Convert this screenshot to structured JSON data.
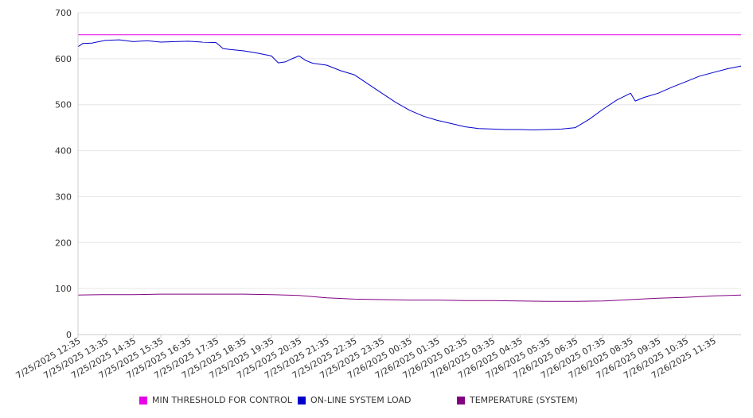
{
  "chart_data": {
    "type": "line",
    "title": "",
    "xlabel": "",
    "ylabel": "",
    "ylim": [
      0,
      700
    ],
    "y_ticks": [
      0,
      100,
      200,
      300,
      400,
      500,
      600,
      700
    ],
    "grid": "horizontal",
    "legend_position": "bottom",
    "x_start": "7/25/2025 12:35",
    "x_end": "7/26/2025 12:35",
    "x_tick_labels": [
      "7/25/2025 12:35",
      "7/25/2025 13:35",
      "7/25/2025 14:35",
      "7/25/2025 15:35",
      "7/25/2025 16:35",
      "7/25/2025 17:35",
      "7/25/2025 18:35",
      "7/25/2025 19:35",
      "7/25/2025 20:35",
      "7/25/2025 21:35",
      "7/25/2025 22:35",
      "7/25/2025 23:35",
      "7/26/2025 00:35",
      "7/26/2025 01:35",
      "7/26/2025 02:35",
      "7/26/2025 03:35",
      "7/26/2025 04:35",
      "7/26/2025 05:35",
      "7/26/2025 06:35",
      "7/26/2025 07:35",
      "7/26/2025 08:35",
      "7/26/2025 09:35",
      "7/26/2025 10:35",
      "7/26/2025 11:35"
    ],
    "series": [
      {
        "name": "MIN THRESHOLD FOR CONTROL",
        "color": "#e600e6",
        "x": [
          "7/25/2025 12:35",
          "7/26/2025 12:35"
        ],
        "values": [
          652,
          652
        ]
      },
      {
        "name": "ON-LINE SYSTEM LOAD",
        "color": "#0000cc",
        "x": [
          "7/25/2025 12:35",
          "7/25/2025 12:45",
          "7/25/2025 13:05",
          "7/25/2025 13:35",
          "7/25/2025 14:05",
          "7/25/2025 14:35",
          "7/25/2025 15:05",
          "7/25/2025 15:35",
          "7/25/2025 16:05",
          "7/25/2025 16:35",
          "7/25/2025 17:05",
          "7/25/2025 17:35",
          "7/25/2025 17:50",
          "7/25/2025 18:05",
          "7/25/2025 18:35",
          "7/25/2025 19:05",
          "7/25/2025 19:35",
          "7/25/2025 19:50",
          "7/25/2025 20:05",
          "7/25/2025 20:20",
          "7/25/2025 20:35",
          "7/25/2025 20:50",
          "7/25/2025 21:05",
          "7/25/2025 21:35",
          "7/25/2025 22:05",
          "7/25/2025 22:35",
          "7/25/2025 23:05",
          "7/25/2025 23:35",
          "7/26/2025 00:05",
          "7/26/2025 00:35",
          "7/26/2025 01:05",
          "7/26/2025 01:35",
          "7/26/2025 02:05",
          "7/26/2025 02:35",
          "7/26/2025 03:05",
          "7/26/2025 03:35",
          "7/26/2025 04:05",
          "7/26/2025 04:35",
          "7/26/2025 05:05",
          "7/26/2025 05:35",
          "7/26/2025 06:05",
          "7/26/2025 06:35",
          "7/26/2025 07:05",
          "7/26/2025 07:35",
          "7/26/2025 08:05",
          "7/26/2025 08:35",
          "7/26/2025 08:45",
          "7/26/2025 09:05",
          "7/26/2025 09:35",
          "7/26/2025 10:05",
          "7/26/2025 10:35",
          "7/26/2025 11:05",
          "7/26/2025 11:35",
          "7/26/2025 12:05",
          "7/26/2025 12:35"
        ],
        "values": [
          626,
          633,
          634,
          640,
          641,
          637,
          639,
          636,
          637,
          638,
          636,
          635,
          622,
          620,
          617,
          612,
          606,
          591,
          593,
          600,
          606,
          596,
          590,
          586,
          574,
          565,
          545,
          525,
          505,
          488,
          475,
          466,
          459,
          452,
          448,
          447,
          446,
          446,
          445,
          446,
          447,
          450,
          468,
          490,
          510,
          525,
          508,
          516,
          525,
          538,
          550,
          562,
          570,
          578,
          584
        ]
      },
      {
        "name": "TEMPERATURE (SYSTEM)",
        "color": "#800080",
        "x": [
          "7/25/2025 12:35",
          "7/25/2025 13:35",
          "7/25/2025 14:35",
          "7/25/2025 15:35",
          "7/25/2025 16:35",
          "7/25/2025 17:35",
          "7/25/2025 18:35",
          "7/25/2025 19:35",
          "7/25/2025 20:35",
          "7/25/2025 21:35",
          "7/25/2025 22:35",
          "7/25/2025 23:35",
          "7/26/2025 00:35",
          "7/26/2025 01:35",
          "7/26/2025 02:35",
          "7/26/2025 03:35",
          "7/26/2025 04:35",
          "7/26/2025 05:35",
          "7/26/2025 06:35",
          "7/26/2025 07:35",
          "7/26/2025 08:35",
          "7/26/2025 09:35",
          "7/26/2025 10:35",
          "7/26/2025 11:35",
          "7/26/2025 12:35"
        ],
        "values": [
          86,
          87,
          87,
          88,
          88,
          88,
          88,
          87,
          85,
          80,
          77,
          76,
          75,
          75,
          74,
          74,
          73,
          72,
          72,
          73,
          76,
          79,
          81,
          84,
          86
        ]
      }
    ]
  }
}
